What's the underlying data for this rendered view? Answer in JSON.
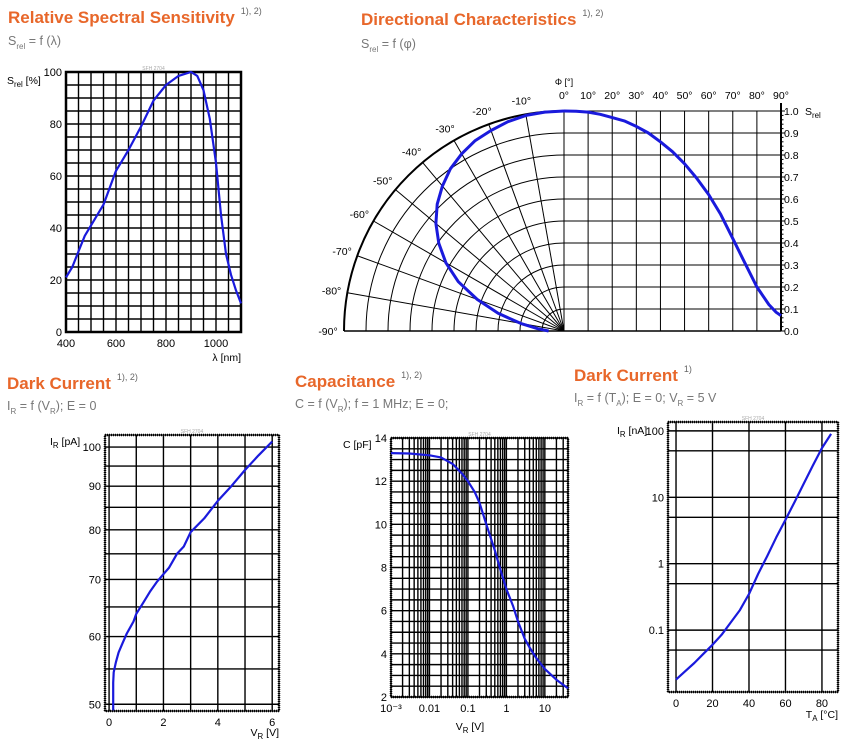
{
  "colors": {
    "title": "#e8672a",
    "curve": "#1a1adc",
    "grid": "#000000",
    "subtitle": "#777777"
  },
  "sections": [
    {
      "title": "Relative Spectral Sensitivity",
      "notes": "1), 2)",
      "subtitle": [
        "S",
        "rel",
        " = f (λ)"
      ]
    },
    {
      "title": "Directional Characteristics",
      "notes": "1), 2)",
      "subtitle": [
        "S",
        "rel",
        " = f (φ)"
      ]
    },
    {
      "title": "Dark Current",
      "notes": "1), 2)",
      "subtitle": [
        "I",
        "R",
        " = f (V",
        "R",
        "); E = 0"
      ]
    },
    {
      "title": "Capacitance",
      "notes": "1), 2)",
      "subtitle": [
        "C = f (V",
        "R",
        "); f = 1 MHz; E = 0;"
      ]
    },
    {
      "title": "Dark Current",
      "notes": "1)",
      "subtitle": [
        "I",
        "R",
        " = f (T",
        "A",
        "); E = 0; V",
        "R",
        " = 5 V"
      ]
    }
  ],
  "chart_data": [
    {
      "type": "line",
      "watermark": "SFH 2704",
      "ylabel": [
        "S",
        "rel",
        " [%]"
      ],
      "xlabel": "λ [nm]",
      "xlim": [
        400,
        1100
      ],
      "ylim": [
        0,
        100
      ],
      "xscale": "linear",
      "yscale": "linear",
      "grid": true,
      "x_grid_step": 50,
      "y_grid_step": 5,
      "x_ticks": [
        400,
        600,
        800,
        1000
      ],
      "y_ticks": [
        0,
        20,
        40,
        60,
        80,
        100
      ],
      "x": [
        400,
        425,
        450,
        475,
        500,
        550,
        600,
        625,
        650,
        700,
        750,
        800,
        850,
        900,
        925,
        950,
        975,
        1000,
        1020,
        1040,
        1060,
        1080,
        1100
      ],
      "y": [
        21,
        25,
        31,
        37,
        41,
        49,
        62,
        66,
        70,
        79,
        89,
        95,
        98.5,
        100,
        98.5,
        93,
        82,
        65,
        45,
        30,
        22,
        16,
        11
      ]
    },
    {
      "type": "polar+line",
      "xlabel": "Φ [°]",
      "ylabel": [
        "S",
        "rel"
      ],
      "angle_ticks_left": [
        "-90°",
        "-80°",
        "-70°",
        "-60°",
        "-50°",
        "-40°",
        "-30°",
        "-20°",
        "-10°"
      ],
      "angle_ticks_top": [
        "0°",
        "10°",
        "20°",
        "30°",
        "40°",
        "50°",
        "60°",
        "70°",
        "80°",
        "90°"
      ],
      "y_ticks": [
        "0.0",
        "0.1",
        "0.2",
        "0.3",
        "0.4",
        "0.5",
        "0.6",
        "0.7",
        "0.8",
        "0.9",
        "1.0"
      ],
      "xlim": [
        0,
        90
      ],
      "ylim": [
        0,
        1.0
      ],
      "grid": true,
      "x": [
        0,
        5,
        10,
        15,
        20,
        25,
        30,
        35,
        40,
        45,
        50,
        55,
        60,
        65,
        70,
        75,
        80,
        85,
        88,
        90
      ],
      "y": [
        1.0,
        0.999,
        0.995,
        0.985,
        0.97,
        0.955,
        0.93,
        0.9,
        0.86,
        0.815,
        0.76,
        0.695,
        0.62,
        0.53,
        0.42,
        0.31,
        0.2,
        0.12,
        0.085,
        0.07
      ]
    },
    {
      "type": "line",
      "watermark": "SFH 2704",
      "ylabel": [
        "I",
        "R",
        " [pA]"
      ],
      "xlabel": [
        "V",
        "R",
        " [V]"
      ],
      "xlim": [
        -0.15,
        6.25
      ],
      "ylim": [
        49.1,
        103.3
      ],
      "xscale": "linear",
      "yscale": "log",
      "grid": true,
      "x_grid_step": 1,
      "y_grid_step": 5,
      "x_ticks": [
        0,
        2,
        4,
        6
      ],
      "y_ticks": [
        50,
        60,
        70,
        80,
        90,
        100
      ],
      "x": [
        0.15,
        0.15,
        0.17,
        0.25,
        0.35,
        0.5,
        0.65,
        0.75,
        0.9,
        1.0,
        1.25,
        1.5,
        1.75,
        2.0,
        2.2,
        2.5,
        2.75,
        3.0,
        3.5,
        4.0,
        4.5,
        5.0,
        5.5,
        6.0
      ],
      "y": [
        49.2,
        53,
        54.5,
        56,
        57.5,
        59,
        60.5,
        61.3,
        62.5,
        63.8,
        65.7,
        67.7,
        69.5,
        71,
        72.2,
        75,
        76.5,
        79.5,
        82.5,
        86.5,
        90,
        94,
        97.8,
        101.5
      ]
    },
    {
      "type": "line",
      "watermark": "SFH 2704",
      "ylabel": "C [pF]",
      "xlabel": [
        "V",
        "R",
        " [V]"
      ],
      "xlim": [
        0.001,
        40
      ],
      "ylim": [
        2,
        14
      ],
      "xscale": "log",
      "yscale": "linear",
      "grid": true,
      "y_grid_step": 0.5,
      "x_ticks": [
        0.001,
        0.01,
        0.1,
        1,
        10
      ],
      "x_tick_labels": [
        "10⁻³",
        "0.01",
        "0.1",
        "1",
        "10"
      ],
      "y_ticks": [
        2,
        4,
        6,
        8,
        10,
        12,
        14
      ],
      "x": [
        0.001,
        0.003,
        0.01,
        0.02,
        0.04,
        0.07,
        0.1,
        0.15,
        0.2,
        0.3,
        0.5,
        0.7,
        1,
        1.5,
        2,
        3,
        4,
        6,
        10,
        20,
        40
      ],
      "y": [
        13.3,
        13.28,
        13.2,
        13.1,
        12.8,
        12.35,
        12.0,
        11.5,
        11.0,
        10.0,
        8.8,
        7.9,
        7.0,
        6.2,
        5.5,
        4.7,
        4.3,
        3.8,
        3.3,
        2.8,
        2.4
      ]
    },
    {
      "type": "line",
      "watermark": "SFH 2704",
      "ylabel": [
        "I",
        "R",
        " [nA]"
      ],
      "xlabel": [
        "T",
        "A",
        " [°C]"
      ],
      "xlim": [
        -4.4,
        88.8
      ],
      "ylim": [
        0.0117,
        136
      ],
      "xscale": "linear",
      "yscale": "log",
      "grid": true,
      "x_grid_step": 20,
      "y_grid_values": [
        0.05,
        0.1,
        0.5,
        1,
        5,
        10,
        50,
        100
      ],
      "x_ticks": [
        0,
        20,
        40,
        60,
        80
      ],
      "y_ticks": [
        0.1,
        1,
        10,
        100
      ],
      "y_tick_labels": [
        "0.1",
        "1",
        "10",
        "100"
      ],
      "x": [
        0,
        5,
        10,
        15,
        20,
        25,
        30,
        35,
        40,
        45,
        50,
        55,
        60,
        65,
        70,
        75,
        80,
        85
      ],
      "y": [
        0.018,
        0.024,
        0.032,
        0.044,
        0.06,
        0.085,
        0.13,
        0.2,
        0.35,
        0.7,
        1.3,
        2.5,
        4.6,
        8.5,
        16,
        30,
        55,
        90
      ]
    }
  ]
}
